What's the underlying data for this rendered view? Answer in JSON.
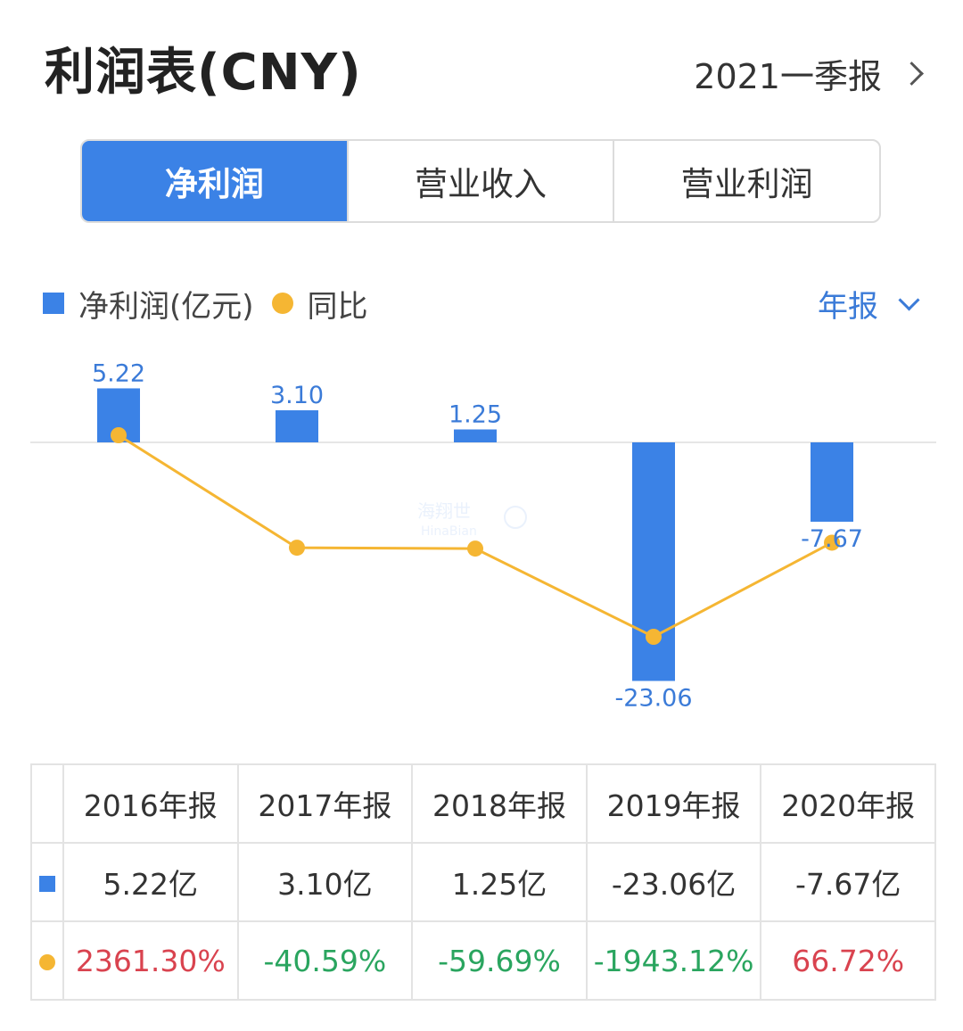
{
  "header": {
    "title": "利润表(CNY)",
    "period": "2021一季报"
  },
  "tabs": [
    {
      "label": "净利润",
      "active": true
    },
    {
      "label": "营业收入",
      "active": false
    },
    {
      "label": "营业利润",
      "active": false
    }
  ],
  "legend": {
    "bar_label": "净利润(亿元)",
    "line_label": "同比"
  },
  "frequency": "年报",
  "watermark": "海翔世 HinaBian",
  "colors": {
    "accent": "#3b82e6",
    "line": "#f5b633",
    "positive": "#d9434f",
    "negative": "#2aa55f"
  },
  "chart_data": {
    "type": "bar",
    "categories": [
      "2016年报",
      "2017年报",
      "2018年报",
      "2019年报",
      "2020年报"
    ],
    "series": [
      {
        "name": "净利润(亿元)",
        "type": "bar",
        "values": [
          5.22,
          3.1,
          1.25,
          -23.06,
          -7.67
        ],
        "labels": [
          "5.22",
          "3.10",
          "1.25",
          "-23.06",
          "-7.67"
        ]
      },
      {
        "name": "同比",
        "type": "line",
        "values": [
          2361.3,
          -40.59,
          -59.69,
          -1943.12,
          66.72
        ]
      }
    ],
    "legend_position": "top-left",
    "grid": false
  },
  "table": {
    "headers": [
      "2016年报",
      "2017年报",
      "2018年报",
      "2019年报",
      "2020年报"
    ],
    "profit_row": [
      "5.22亿",
      "3.10亿",
      "1.25亿",
      "-23.06亿",
      "-7.67亿"
    ],
    "yoy_row": [
      "2361.30%",
      "-40.59%",
      "-59.69%",
      "-1943.12%",
      "66.72%"
    ]
  }
}
